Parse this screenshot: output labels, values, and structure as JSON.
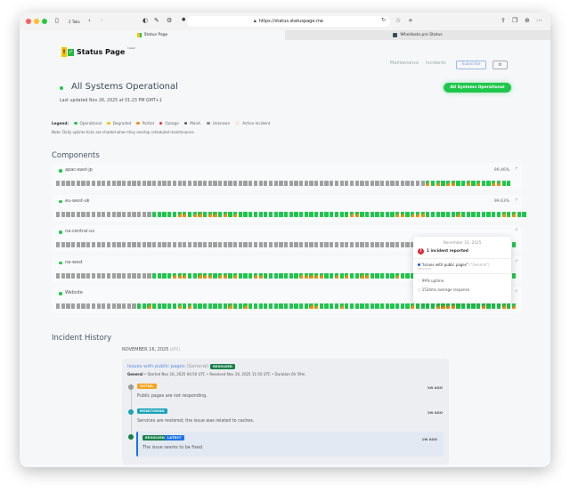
{
  "browser": {
    "tabs_count": "2 Tabs",
    "url": "https://status.statuspage.me",
    "tabs": [
      {
        "label": "Status Page",
        "active": true
      },
      {
        "label": "WhoHosts.pro Status",
        "active": false
      }
    ]
  },
  "header": {
    "logo_text": "Status Page",
    "logo_sup": "hosted",
    "nav": [
      "Maintenance",
      "Incidents"
    ],
    "subscribe": "Subscribe",
    "settings_icon": "gear-icon"
  },
  "hero": {
    "title": "All Systems Operational",
    "badge": "All Systems Operational",
    "last_updated": "Last updated Nov 26, 2025 at 01:23 PM GMT+1"
  },
  "legend": {
    "label": "Legend:",
    "items": [
      {
        "label": "Operational",
        "color": "#1ec74c"
      },
      {
        "label": "Degraded",
        "color": "#f5c400"
      },
      {
        "label": "Partial",
        "color": "#f28c12"
      },
      {
        "label": "Outage",
        "color": "#e03131"
      },
      {
        "label": "Maint.",
        "color": "#4f5d6b"
      },
      {
        "label": "Unknown",
        "color": "#8d8d8d"
      },
      {
        "label": "Active Incident",
        "color": "#f6ead6"
      }
    ],
    "note": "Note: Daily uptime ticks are shaded when they overlap scheduled maintenance."
  },
  "components": {
    "title": "Components",
    "colors": {
      "g": "#a0a0a0",
      "o": "#1ec74c",
      "p": "#f28c12"
    },
    "items": [
      {
        "name": "apac-east-jp",
        "uptime": "99.46%",
        "days": "gggggggggggggggggggggggggggggggggggggggggggggggggggggggggggggggggggggggggpopoppoopopooppoo"
      },
      {
        "name": "eu-west-uk",
        "uptime": "99.63%",
        "days": "gggggggggggggggggggoooooppoppoppopopooooooooooooooooooooooppoooooooppopppoooooopoooooooopopoo"
      },
      {
        "name": "na-central-us",
        "uptime": "",
        "days": "gggggggggggggggggggggggggggggggggggggggggggggggggggggggggggggggggggggggggggggggggggggggggoo"
      },
      {
        "name": "na-west",
        "uptime": "",
        "days": "gggggggggggggggggggoooopppoopppoppopoooppooooooopppppoopopooppooooopoooooopoooopoooopppoopo"
      },
      {
        "name": "Website",
        "uptime": "",
        "days": "ggggggggggggggggoopooooopopooooooopoopooooooooooooppoooopooooooooooooopooooppppooooopooopop"
      }
    ]
  },
  "tooltip": {
    "date": "November 16, 2025",
    "count": "1 incident reported",
    "incident": "\"Issues with public pages\"",
    "incident_group": "(\"General\")",
    "incident_status": "Resolved",
    "uptime": "99% uptime",
    "response": "1534ms average response"
  },
  "history": {
    "title": "Incident History",
    "date": "NOVEMBER 16, 2025",
    "tz": "(UTC)",
    "incident": {
      "title": "Issues with public pages",
      "group": "(General)",
      "status": "RESOLVED",
      "meta_group": "General",
      "meta": " • Started Nov 16, 2025 04:50 UTC • Resolved Nov 16, 2025 11:50 UTC • Duration 6h 59m",
      "updates": [
        {
          "badge": "INITIAL",
          "color": "#f7a21b",
          "dot": "#9a9a9a",
          "ago": "1W AGO",
          "text": "Public pages are not responding."
        },
        {
          "badge": "MONITORING",
          "color": "#1aa3b8",
          "dot": "#1aa3b8",
          "ago": "1W AGO",
          "text": "Services are restored; the issue was related to caches."
        },
        {
          "badge": "RESOLVED",
          "badge2": "LATEST",
          "color": "#16804a",
          "color2": "#1a73e8",
          "dot": "#16804a",
          "ago": "1W AGO",
          "text": "The issue seems to be fixed."
        }
      ]
    }
  }
}
